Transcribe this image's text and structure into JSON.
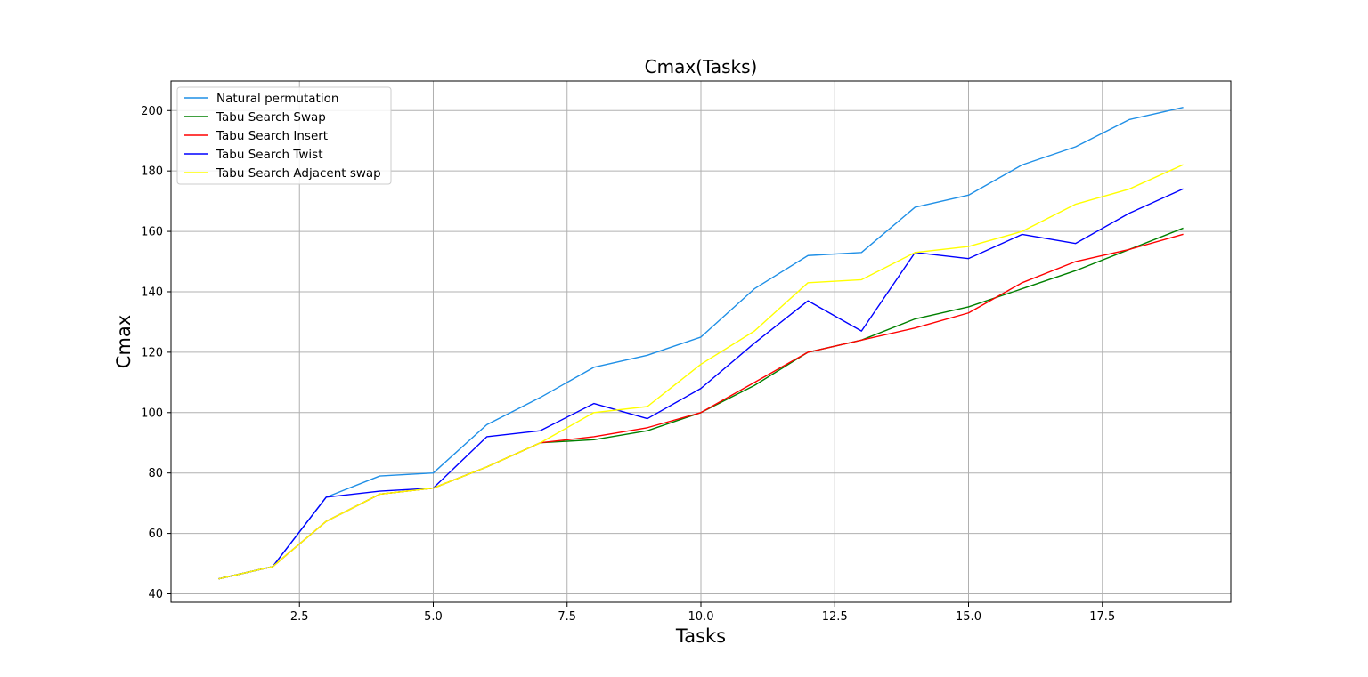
{
  "chart_data": {
    "type": "line",
    "title": "Cmax(Tasks)",
    "xlabel": "Tasks",
    "ylabel": "Cmax",
    "xlim": [
      0.1,
      19.9
    ],
    "ylim": [
      37.2,
      209.8
    ],
    "xticks": [
      2.5,
      5.0,
      7.5,
      10.0,
      12.5,
      15.0,
      17.5
    ],
    "xtick_labels": [
      "2.5",
      "5.0",
      "7.5",
      "10.0",
      "12.5",
      "15.0",
      "17.5"
    ],
    "yticks": [
      40,
      60,
      80,
      100,
      120,
      140,
      160,
      180,
      200
    ],
    "ytick_labels": [
      "40",
      "60",
      "80",
      "100",
      "120",
      "140",
      "160",
      "180",
      "200"
    ],
    "grid": true,
    "legend_position": "top-left",
    "x": [
      1,
      2,
      3,
      4,
      5,
      6,
      7,
      8,
      9,
      10,
      11,
      12,
      13,
      14,
      15,
      16,
      17,
      18,
      19
    ],
    "series": [
      {
        "name": "Natural permutation",
        "color": "#1f8fe6",
        "values": [
          45,
          49,
          72,
          79,
          80,
          96,
          105,
          115,
          119,
          125,
          141,
          152,
          153,
          168,
          172,
          182,
          188,
          197,
          201
        ]
      },
      {
        "name": "Tabu Search Swap",
        "color": "#008000",
        "values": [
          45,
          49,
          64,
          73,
          75,
          82,
          90,
          91,
          94,
          100,
          109,
          120,
          124,
          131,
          135,
          141,
          147,
          154,
          161
        ]
      },
      {
        "name": "Tabu Search Insert",
        "color": "#ff0000",
        "values": [
          45,
          49,
          64,
          73,
          75,
          82,
          90,
          92,
          95,
          100,
          110,
          120,
          124,
          128,
          133,
          143,
          150,
          154,
          159
        ]
      },
      {
        "name": "Tabu Search Twist",
        "color": "#0000ff",
        "values": [
          45,
          49,
          72,
          74,
          75,
          92,
          94,
          103,
          98,
          108,
          123,
          137,
          127,
          153,
          151,
          159,
          156,
          166,
          174
        ]
      },
      {
        "name": "Tabu Search Adjacent swap",
        "color": "#ffff00",
        "values": [
          45,
          49,
          64,
          73,
          75,
          82,
          90,
          100,
          102,
          116,
          127,
          143,
          144,
          153,
          155,
          160,
          169,
          174,
          182
        ]
      }
    ]
  }
}
